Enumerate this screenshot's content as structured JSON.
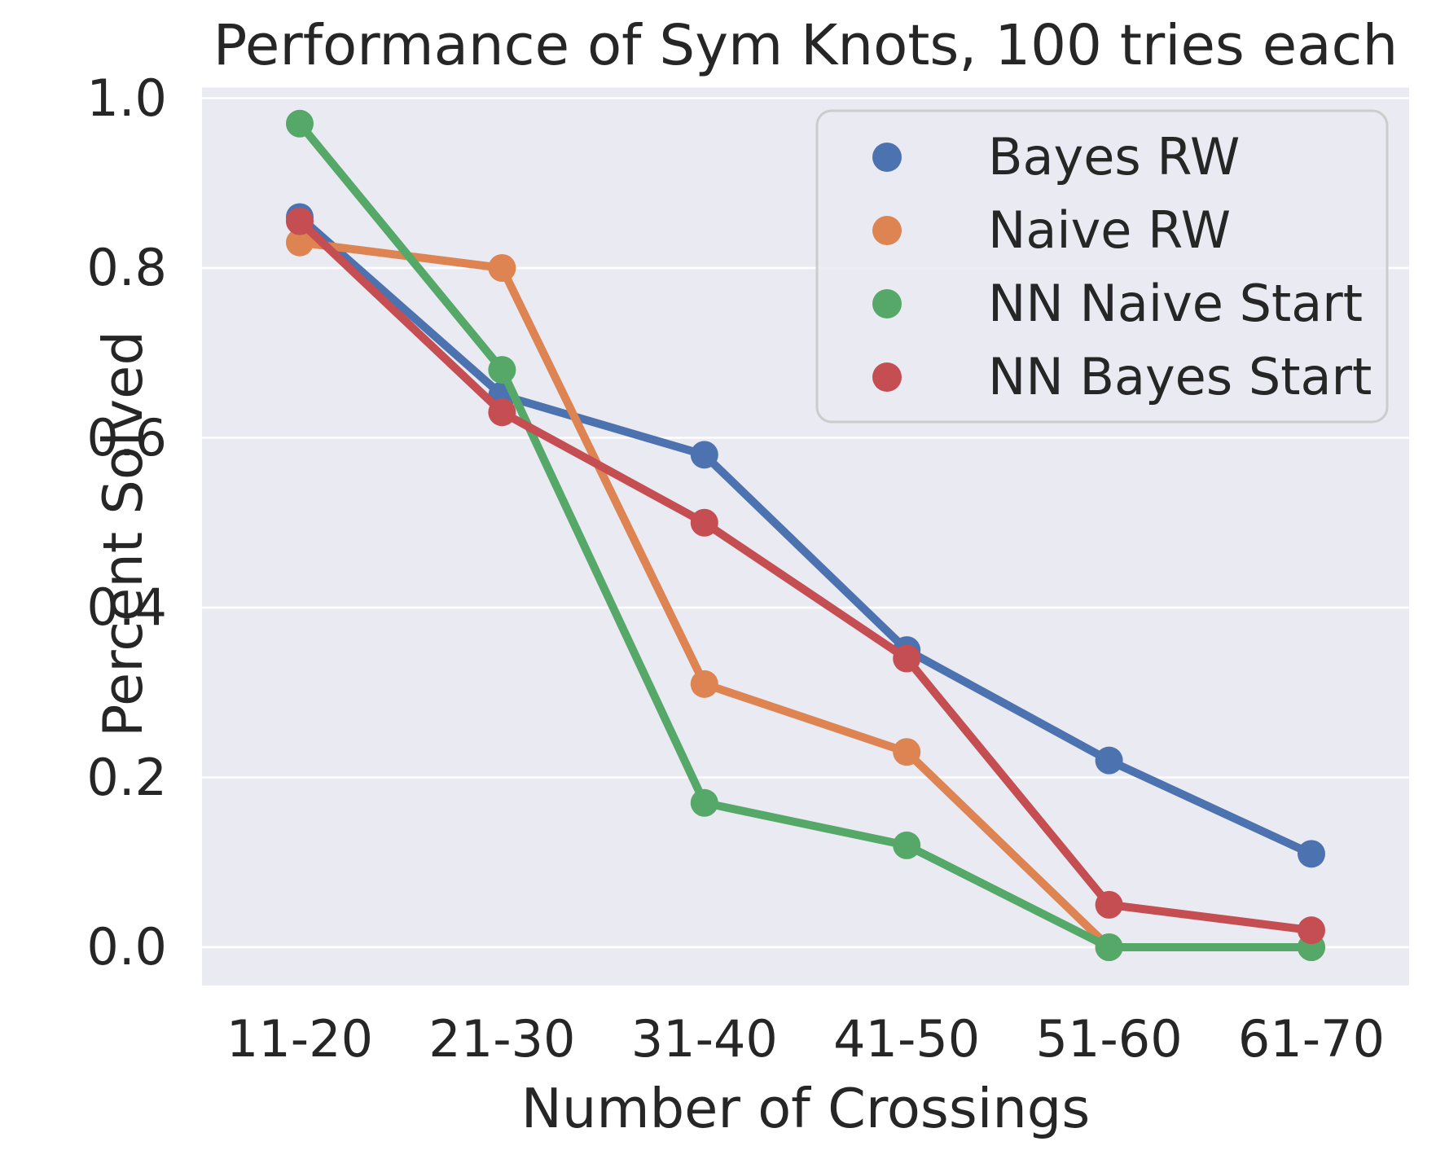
{
  "figure": {
    "title": "Performance of Sym Knots, 100 tries each",
    "xlabel": "Number of Crossings",
    "ylabel": "Percent Solved"
  },
  "chart_data": {
    "type": "line",
    "title": "Performance of Sym Knots, 100 tries each",
    "xlabel": "Number of Crossings",
    "ylabel": "Percent Solved",
    "categories": [
      "11-20",
      "21-30",
      "31-40",
      "41-50",
      "51-60",
      "61-70"
    ],
    "series": [
      {
        "name": "Bayes RW",
        "color": "#4C72B0",
        "values": [
          0.86,
          0.65,
          0.58,
          0.35,
          0.22,
          0.11
        ]
      },
      {
        "name": "Naive RW",
        "color": "#DD8452",
        "values": [
          0.83,
          0.8,
          0.31,
          0.23,
          0.0,
          0.0
        ]
      },
      {
        "name": "NN Naive Start",
        "color": "#55A868",
        "values": [
          0.97,
          0.68,
          0.17,
          0.12,
          0.0,
          0.0
        ]
      },
      {
        "name": "NN Bayes Start",
        "color": "#C44E52",
        "values": [
          0.855,
          0.63,
          0.5,
          0.34,
          0.05,
          0.02
        ]
      }
    ],
    "yticks": [
      0.0,
      0.2,
      0.4,
      0.6,
      0.8,
      1.0
    ],
    "ytick_labels": [
      "0.0",
      "0.2",
      "0.4",
      "0.6",
      "0.8",
      "1.0"
    ],
    "ylim": [
      -0.045,
      1.013
    ],
    "grid": "horizontal-white-gridlines",
    "legend_position": "upper right",
    "legend_entries": [
      "Bayes RW",
      "Naive RW",
      "NN Naive Start",
      "NN Bayes Start"
    ],
    "styles": {
      "plot_background": "#EAEAF2",
      "gridline_color": "#FFFFFF",
      "text_color": "#262626",
      "legend_border": "#CCCCCC",
      "legend_background": "#EAEAF2"
    }
  }
}
